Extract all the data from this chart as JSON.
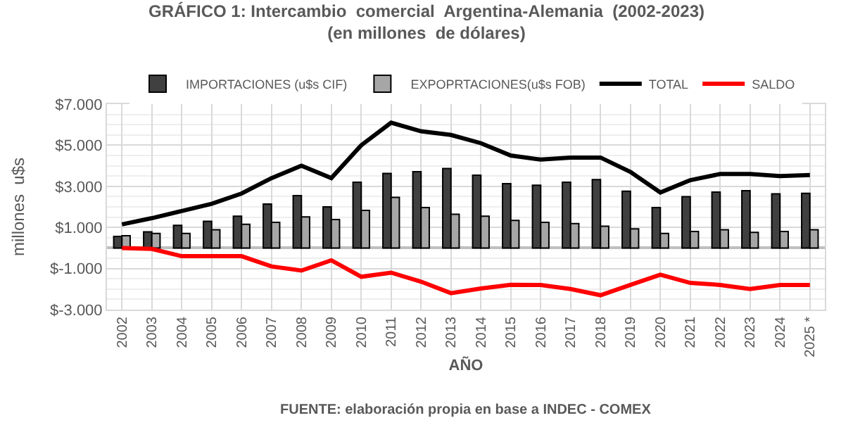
{
  "chart_data": {
    "type": "bar",
    "title": "GRÁFICO 1: Intercambio  comercial  Argentina-Alemania  (2002-2023)",
    "subtitle": "(en millones  de dólares)",
    "xlabel": "AÑO",
    "ylabel": "millones  u$s",
    "categories": [
      "2002",
      "2003",
      "2004",
      "2005",
      "2006",
      "2007",
      "2008",
      "2009",
      "2010",
      "2011",
      "2012",
      "2013",
      "2014",
      "2015",
      "2016",
      "2017",
      "2018",
      "2019",
      "2020",
      "2021",
      "2022",
      "2023",
      "2024",
      "2025 *"
    ],
    "series": [
      {
        "name": "IMPORTACIONES (u$s CIF)",
        "color": "#404040",
        "values": [
          560,
          780,
          1100,
          1300,
          1550,
          2140,
          2550,
          2000,
          3200,
          3630,
          3710,
          3870,
          3540,
          3130,
          3050,
          3200,
          3330,
          2760,
          1970,
          2500,
          2720,
          2790,
          2630,
          2660
        ]
      },
      {
        "name": "EXPOPRTACIONES(u$s FOB)",
        "color": "#a6a6a6",
        "values": [
          600,
          710,
          710,
          890,
          1150,
          1250,
          1510,
          1380,
          1830,
          2460,
          1970,
          1640,
          1550,
          1340,
          1250,
          1190,
          1060,
          930,
          710,
          800,
          890,
          760,
          800,
          890
        ]
      },
      {
        "name": "TOTAL",
        "type": "line",
        "color": "#000000",
        "values": [
          1150,
          1450,
          1800,
          2150,
          2650,
          3400,
          4000,
          3400,
          5000,
          6100,
          5680,
          5500,
          5100,
          4500,
          4300,
          4400,
          4400,
          3700,
          2700,
          3300,
          3600,
          3600,
          3500,
          3550
        ]
      },
      {
        "name": "SALDO",
        "type": "line",
        "color": "#ff0000",
        "values": [
          0,
          -50,
          -400,
          -400,
          -400,
          -900,
          -1100,
          -600,
          -1400,
          -1200,
          -1640,
          -2200,
          -1970,
          -1790,
          -1800,
          -2000,
          -2300,
          -1800,
          -1300,
          -1700,
          -1800,
          -2000,
          -1800,
          -1800
        ]
      }
    ],
    "ylim": [
      -3000,
      7000
    ],
    "yticks": [
      {
        "value": -3000,
        "label": "$-3.000"
      },
      {
        "value": -1000,
        "label": "$-1.000"
      },
      {
        "value": 1000,
        "label": "$1.000"
      },
      {
        "value": 3000,
        "label": "$3.000"
      },
      {
        "value": 5000,
        "label": "$5.000"
      },
      {
        "value": 7000,
        "label": "$7.000"
      }
    ],
    "grid": true,
    "legend": "top",
    "marker": "none",
    "line_style": "solid",
    "annotations": [
      "FUENTE: elaboración propia en base a INDEC - COMEX"
    ]
  }
}
